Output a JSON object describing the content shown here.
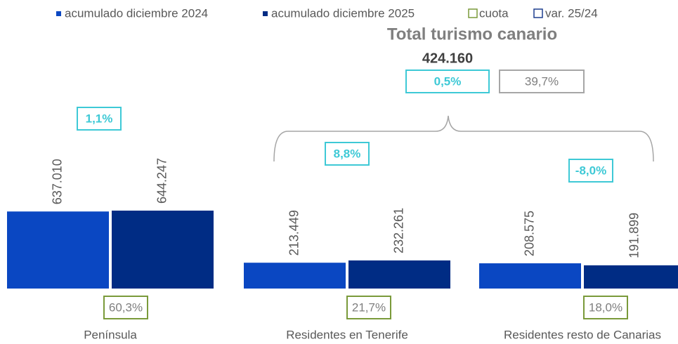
{
  "chart_data": {
    "type": "bar",
    "title": "Total turismo canario",
    "categories": [
      "Península",
      "Residentes en Tenerife",
      "Residentes resto de Canarias"
    ],
    "series": [
      {
        "name": "acumulado diciembre 2024",
        "color": "#0a47c2",
        "values": [
          637010,
          213449,
          208575
        ],
        "value_labels": [
          "637.010",
          "213.449",
          "208.575"
        ]
      },
      {
        "name": "acumulado diciembre 2025",
        "color": "#002c84",
        "values": [
          644247,
          232261,
          191899
        ],
        "value_labels": [
          "644.247",
          "232.261",
          "191.899"
        ]
      }
    ],
    "cuota": {
      "name": "cuota",
      "color": "#7a9a3a",
      "values": [
        60.3,
        21.7,
        18.0
      ],
      "value_labels": [
        "60,3%",
        "21,7%",
        "18,0%"
      ]
    },
    "var": {
      "name": "var. 25/24",
      "color": "#1f3f8f",
      "box_color": "#3ec9d6",
      "values": [
        1.1,
        8.8,
        -8.0
      ],
      "value_labels": [
        "1,1%",
        "8,8%",
        "-8,0%"
      ]
    },
    "total": {
      "value": 424160,
      "value_label": "424.160",
      "var": 0.5,
      "var_label": "0,5%",
      "cuota": 39.7,
      "cuota_label": "39,7%"
    }
  }
}
